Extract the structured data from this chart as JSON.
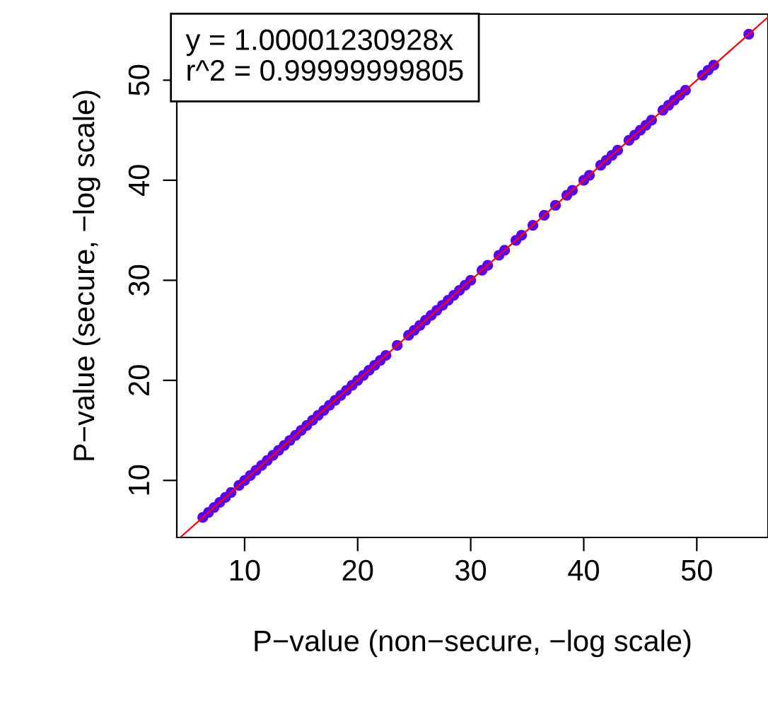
{
  "chart_data": {
    "type": "scatter",
    "xlabel": "P−value (non−secure, −log scale)",
    "ylabel": "P−value (secure, −log scale)",
    "annotations": [
      "y = 1.00001230928x",
      "r^2 = 0.99999999805"
    ],
    "xlim": [
      4.0,
      56.3
    ],
    "ylim": [
      4.3,
      56.6
    ],
    "xticks": [
      10,
      20,
      30,
      40,
      50
    ],
    "yticks": [
      10,
      20,
      30,
      40,
      50
    ],
    "grid": false,
    "legend": false,
    "series": [
      {
        "marker": "circle",
        "color": "#5a00f5",
        "x": [
          6.3,
          6.8,
          7.3,
          7.8,
          8.3,
          8.8,
          9.5,
          10,
          10.5,
          11,
          11.5,
          12,
          12.5,
          13,
          13.5,
          14,
          14.5,
          15,
          15.5,
          16,
          16.5,
          17,
          17.5,
          18,
          18.5,
          19,
          19.5,
          20,
          20.5,
          21,
          21.5,
          22,
          22.5,
          23.5,
          24.5,
          25,
          25.5,
          26,
          26.5,
          27,
          27.5,
          28,
          28.5,
          29,
          29.5,
          30,
          31,
          31.5,
          32.5,
          33,
          34,
          34.5,
          35.5,
          36.5,
          37.5,
          38.5,
          39,
          40,
          40.5,
          41.5,
          42,
          42.5,
          43,
          44,
          44.5,
          45,
          45.5,
          46,
          47,
          47.5,
          48,
          48.5,
          49,
          50.5,
          51,
          51.5,
          54.6
        ],
        "values": [
          6.3,
          6.8,
          7.3,
          7.8,
          8.3,
          8.8,
          9.5,
          10,
          10.5,
          11,
          11.5,
          12,
          12.5,
          13,
          13.5,
          14,
          14.5,
          15,
          15.5,
          16,
          16.5,
          17,
          17.5,
          18,
          18.5,
          19,
          19.5,
          20,
          20.5,
          21,
          21.5,
          22,
          22.5,
          23.5,
          24.5,
          25,
          25.5,
          26,
          26.5,
          27,
          27.5,
          28,
          28.5,
          29,
          29.5,
          30,
          31,
          31.5,
          32.5,
          33,
          34,
          34.5,
          35.5,
          36.5,
          37.5,
          38.5,
          39,
          40,
          40.5,
          41.5,
          42,
          42.5,
          43,
          44,
          44.5,
          45,
          45.5,
          46,
          47,
          47.5,
          48,
          48.5,
          49,
          50.5,
          51,
          51.5,
          54.6
        ]
      },
      {
        "type": "line",
        "color": "#ff0000",
        "x": [
          4.3,
          56.3
        ],
        "values": [
          4.3,
          56.3
        ]
      }
    ]
  }
}
